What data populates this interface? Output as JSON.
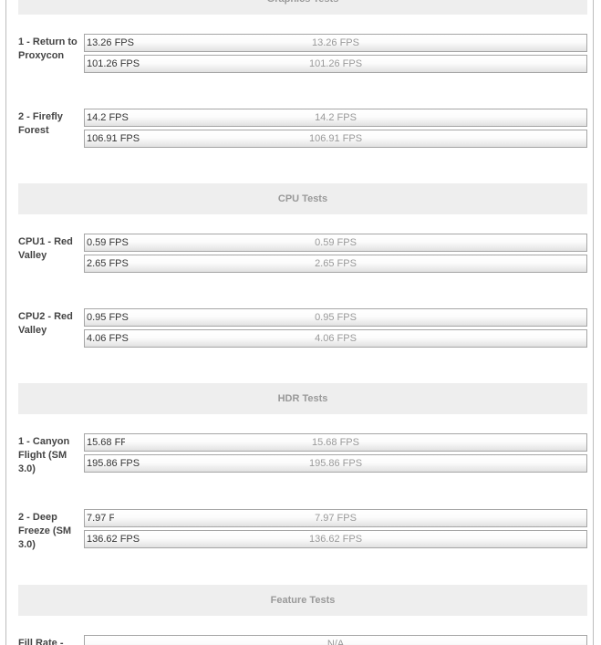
{
  "colors": {
    "frame_border": "#bdbdbd",
    "section_band_bg": "#eeeeee",
    "section_band_text": "#999999",
    "test_label_text": "#444444",
    "bar_border": "#a6a6a6",
    "bar_value_left_text": "#333333",
    "bar_value_center_text": "#999999",
    "bar_gradient_top": "#ffffff",
    "bar_gradient_bottom": "#e1e1e1"
  },
  "sections": [
    {
      "title": "Graphics Tests",
      "rows": [
        {
          "label": "1 - Return to Proxycon",
          "bars": [
            {
              "value": "13.26 FPS",
              "fill_pct": 13.1,
              "show_left_label": true
            },
            {
              "value": "101.26 FPS",
              "fill_pct": 100,
              "show_left_label": true
            }
          ]
        },
        {
          "label": "2 - Firefly Forest",
          "bars": [
            {
              "value": "14.2 FPS",
              "fill_pct": 13.3,
              "show_left_label": true
            },
            {
              "value": "106.91 FPS",
              "fill_pct": 100,
              "show_left_label": true
            }
          ]
        }
      ]
    },
    {
      "title": "CPU Tests",
      "rows": [
        {
          "label": "CPU1 - Red Valley",
          "bars": [
            {
              "value": "0.59 FPS",
              "fill_pct": 22.3,
              "show_left_label": true
            },
            {
              "value": "2.65 FPS",
              "fill_pct": 100,
              "show_left_label": true
            }
          ]
        },
        {
          "label": "CPU2 - Red Valley",
          "bars": [
            {
              "value": "0.95 FPS",
              "fill_pct": 23.4,
              "show_left_label": true
            },
            {
              "value": "4.06 FPS",
              "fill_pct": 100,
              "show_left_label": true
            }
          ]
        }
      ]
    },
    {
      "title": "HDR Tests",
      "rows": [
        {
          "label": "1 - Canyon Flight (SM 3.0)",
          "bars": [
            {
              "value": "15.68 FPS",
              "fill_pct": 8.0,
              "show_left_label": true
            },
            {
              "value": "195.86 FPS",
              "fill_pct": 100,
              "show_left_label": true
            }
          ]
        },
        {
          "label": "2 - Deep Freeze (SM 3.0)",
          "bars": [
            {
              "value": "7.97 FPS",
              "fill_pct": 5.8,
              "show_left_label": true
            },
            {
              "value": "136.62 FPS",
              "fill_pct": 100,
              "show_left_label": true
            }
          ]
        }
      ]
    },
    {
      "title": "Feature Tests",
      "rows": [
        {
          "label": "Fill Rate -",
          "bars": [
            {
              "value": "N/A",
              "fill_pct": 0,
              "show_left_label": false
            }
          ]
        }
      ]
    }
  ],
  "chart_data": [
    {
      "type": "bar",
      "orientation": "horizontal",
      "title": "Graphics Tests",
      "unit": "FPS",
      "categories": [
        "1 - Return to Proxycon",
        "2 - Firefly Forest"
      ],
      "series": [
        {
          "name": "bar-1",
          "values": [
            13.26,
            14.2
          ]
        },
        {
          "name": "bar-2",
          "values": [
            101.26,
            106.91
          ]
        }
      ],
      "value_labels": [
        [
          "13.26 FPS",
          "101.26 FPS"
        ],
        [
          "14.2 FPS",
          "106.91 FPS"
        ]
      ]
    },
    {
      "type": "bar",
      "orientation": "horizontal",
      "title": "CPU Tests",
      "unit": "FPS",
      "categories": [
        "CPU1 - Red Valley",
        "CPU2 - Red Valley"
      ],
      "series": [
        {
          "name": "bar-1",
          "values": [
            0.59,
            0.95
          ]
        },
        {
          "name": "bar-2",
          "values": [
            2.65,
            4.06
          ]
        }
      ],
      "value_labels": [
        [
          "0.59 FPS",
          "2.65 FPS"
        ],
        [
          "0.95 FPS",
          "4.06 FPS"
        ]
      ]
    },
    {
      "type": "bar",
      "orientation": "horizontal",
      "title": "HDR Tests",
      "unit": "FPS",
      "categories": [
        "1 - Canyon Flight (SM 3.0)",
        "2 - Deep Freeze (SM 3.0)"
      ],
      "series": [
        {
          "name": "bar-1",
          "values": [
            15.68,
            7.97
          ]
        },
        {
          "name": "bar-2",
          "values": [
            195.86,
            136.62
          ]
        }
      ],
      "value_labels": [
        [
          "15.68 FPS",
          "195.86 FPS"
        ],
        [
          "7.97 FPS",
          "136.62 FPS"
        ]
      ]
    },
    {
      "type": "bar",
      "orientation": "horizontal",
      "title": "Feature Tests",
      "unit": "FPS",
      "categories": [
        "Fill Rate -"
      ],
      "series": [
        {
          "name": "bar-1",
          "values": [
            "N/A"
          ]
        }
      ],
      "value_labels": [
        [
          "N/A"
        ]
      ]
    }
  ]
}
